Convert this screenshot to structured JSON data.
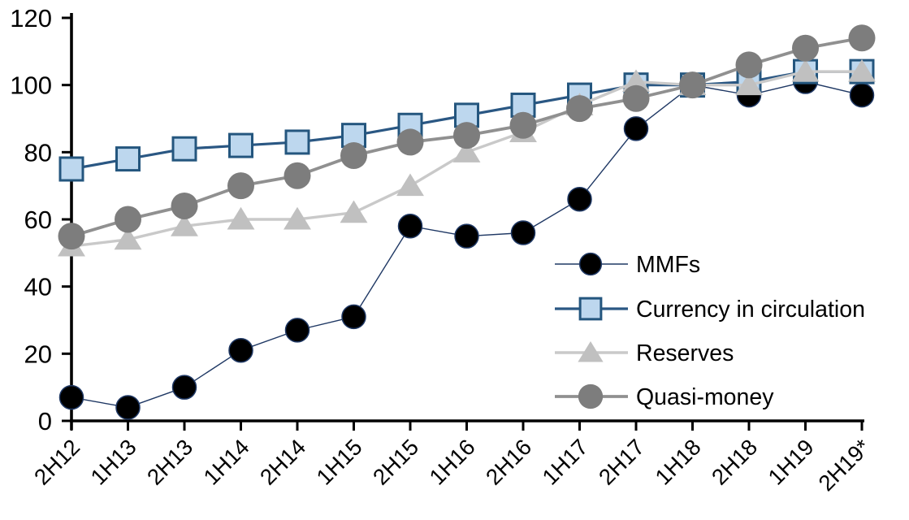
{
  "chart_data": {
    "type": "line",
    "title": "",
    "categories": [
      "2H12",
      "1H13",
      "2H13",
      "1H14",
      "2H14",
      "1H15",
      "2H15",
      "1H16",
      "2H16",
      "1H17",
      "2H17",
      "1H18",
      "2H18",
      "1H19",
      "2H19*"
    ],
    "series": [
      {
        "name": "MMFs",
        "marker": "circle",
        "line_color": "#1F3864",
        "marker_fill": "#000000",
        "marker_stroke": "#1F3864",
        "line_width": 1.4,
        "marker_size": 29,
        "values": [
          7,
          4,
          10,
          21,
          27,
          31,
          58,
          55,
          56,
          66,
          87,
          100,
          97,
          101,
          97
        ]
      },
      {
        "name": "Currency in circulation",
        "marker": "square",
        "line_color": "#2A5783",
        "marker_fill": "#BDD7EE",
        "marker_stroke": "#24567E",
        "line_width": 3.2,
        "marker_size": 28,
        "values": [
          75,
          78,
          81,
          82,
          83,
          85,
          88,
          91,
          94,
          97,
          100,
          100,
          101,
          104,
          104
        ]
      },
      {
        "name": "Reserves",
        "marker": "triangle",
        "line_color": "#C9C9C9",
        "marker_fill": "#C0C0C0",
        "marker_stroke": "none",
        "line_width": 3.4,
        "marker_size": 32,
        "values": [
          52,
          54,
          58,
          60,
          60,
          62,
          70,
          80,
          86,
          94,
          101,
          100,
          100,
          104,
          104
        ]
      },
      {
        "name": "Quasi-money",
        "marker": "circle",
        "line_color": "#909090",
        "marker_fill": "#7D7D7D",
        "marker_stroke": "none",
        "line_width": 3.8,
        "marker_size": 33,
        "values": [
          55,
          60,
          64,
          70,
          73,
          79,
          83,
          85,
          88,
          93,
          96,
          100,
          106,
          111,
          114
        ]
      }
    ],
    "x_axis": {
      "label": "",
      "tick_label_rotation_deg": -45
    },
    "y_axis": {
      "label": "",
      "min": 0,
      "max": 120,
      "step": 20,
      "tick_labels": [
        "0",
        "20",
        "40",
        "60",
        "80",
        "100",
        "120"
      ]
    },
    "legend": {
      "position": "inside-right",
      "entries": [
        "MMFs",
        "Currency in circulation",
        "Reserves",
        "Quasi-money"
      ]
    },
    "grid": false,
    "axis_color": "#000000"
  }
}
